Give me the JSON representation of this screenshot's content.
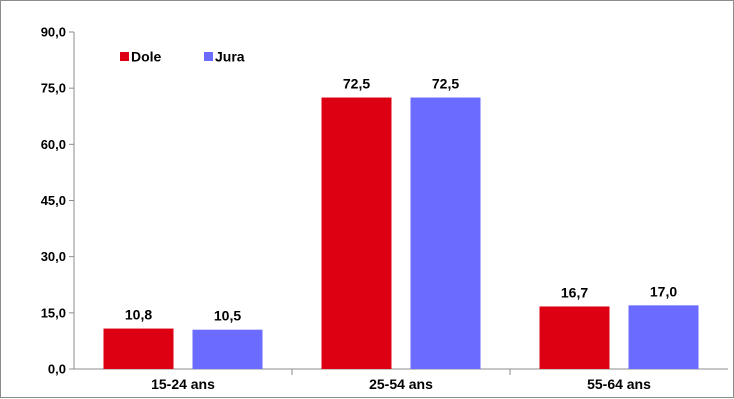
{
  "chart_data": {
    "type": "bar",
    "categories": [
      "15-24 ans",
      "25-54 ans",
      "55-64 ans"
    ],
    "series": [
      {
        "name": "Dole",
        "values": [
          10.8,
          72.5,
          16.7
        ],
        "color": "#DD0013"
      },
      {
        "name": "Jura",
        "values": [
          10.5,
          72.5,
          17.0
        ],
        "color": "#6B6BFF"
      }
    ],
    "data_labels": [
      [
        "10,8",
        "72,5",
        "16,7"
      ],
      [
        "10,5",
        "72,5",
        "17,0"
      ]
    ],
    "ylim": [
      0,
      90
    ],
    "yticks": [
      "0,0",
      "15,0",
      "30,0",
      "45,0",
      "60,0",
      "75,0",
      "90,0"
    ],
    "grid": false,
    "legend_position": "top-left",
    "title": "",
    "xlabel": "",
    "ylabel": ""
  }
}
